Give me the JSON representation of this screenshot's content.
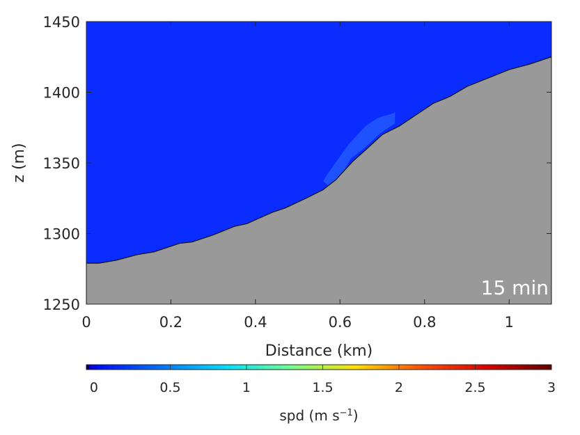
{
  "chart_data": {
    "type": "area",
    "xlabel": "Distance (km)",
    "ylabel": "z (m)",
    "xlim": [
      0,
      1.1
    ],
    "ylim": [
      1250,
      1450
    ],
    "xticks": [
      0,
      0.2,
      0.4,
      0.6,
      0.8,
      1
    ],
    "yticks": [
      1250,
      1300,
      1350,
      1400,
      1450
    ],
    "annotation": "15 min",
    "grid": false,
    "colors": {
      "background_field": "#0a2cff",
      "highlight_field": "#1f52ff",
      "terrain": "#999999",
      "terrain_edge": "#111111"
    },
    "terrain": {
      "name": "",
      "x": [
        0,
        0.03,
        0.07,
        0.12,
        0.16,
        0.2,
        0.22,
        0.25,
        0.3,
        0.35,
        0.38,
        0.44,
        0.47,
        0.52,
        0.56,
        0.59,
        0.63,
        0.66,
        0.7,
        0.74,
        0.78,
        0.82,
        0.86,
        0.9,
        0.95,
        1.0,
        1.05,
        1.1
      ],
      "z": [
        1279,
        1279,
        1281,
        1285,
        1287,
        1291,
        1293,
        1294,
        1299,
        1305,
        1307,
        1315,
        1318,
        1325,
        1331,
        1338,
        1351,
        1359,
        1370,
        1376,
        1384,
        1392,
        1397,
        1404,
        1410,
        1416,
        1420,
        1425
      ]
    },
    "speed_highlight": {
      "x": [
        0.56,
        0.585,
        0.625,
        0.66,
        0.695,
        0.73,
        0.73,
        0.725,
        0.69,
        0.66,
        0.62,
        0.57
      ],
      "z": [
        1337,
        1331,
        1353,
        1361,
        1371,
        1378,
        1386,
        1385,
        1382,
        1376,
        1363,
        1342
      ]
    },
    "colorbar": {
      "label_text": "spd (m s",
      "label_exponent": "−1",
      "label_close": ")",
      "min": -0.05,
      "max": 3,
      "ticks": [
        0,
        0.5,
        1,
        1.5,
        2,
        2.5,
        3
      ],
      "tick_labels": [
        "0",
        "0.5",
        "1",
        "1.5",
        "2",
        "2.5",
        "3"
      ],
      "colormap": [
        "#000000",
        "#0000ff",
        "#0070ff",
        "#00e0ff",
        "#70ff90",
        "#ffe000",
        "#ff5000",
        "#e00000",
        "#600000"
      ]
    }
  }
}
